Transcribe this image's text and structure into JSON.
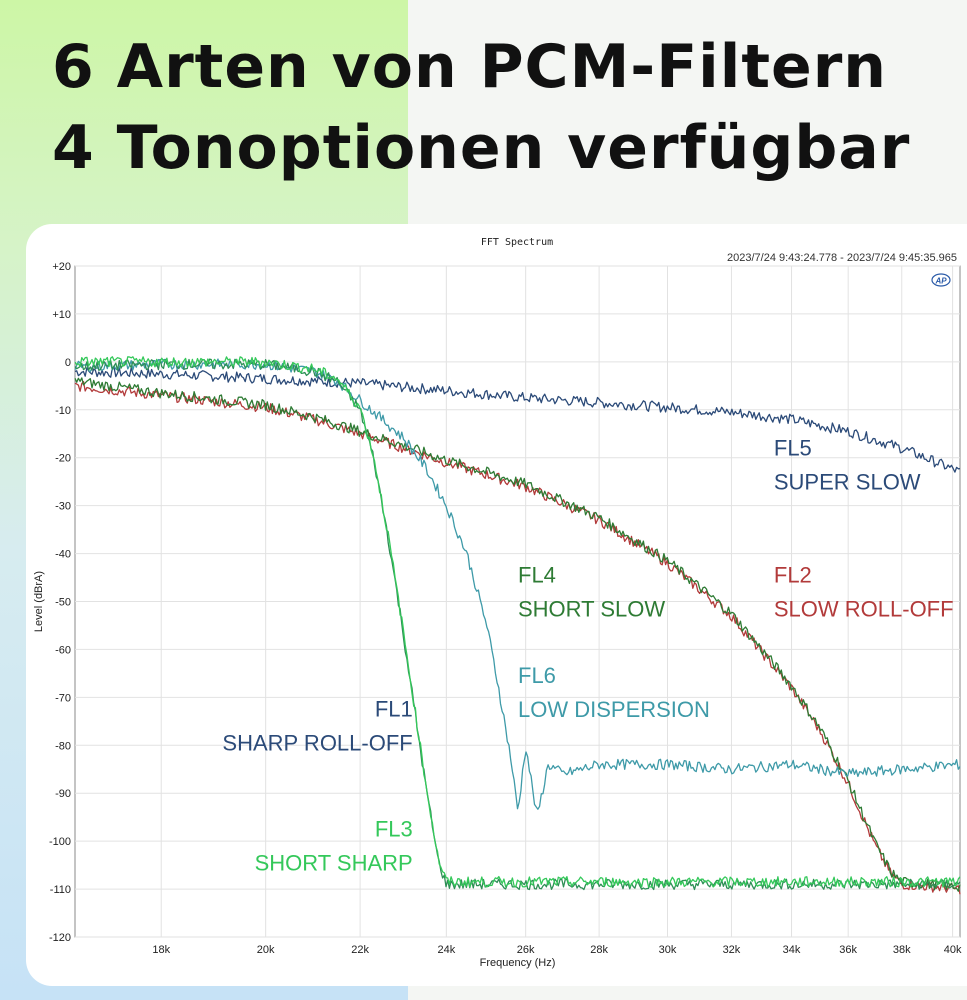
{
  "headline": {
    "line1": "6 Arten von PCM-Filtern",
    "line2": "4 Tonoptionen verfügbar"
  },
  "chart_data": {
    "type": "line",
    "title": "FFT Spectrum",
    "subtitle": "2023/7/24 9:43:24.778 -   2023/7/24 9:45:35.965",
    "logo_text": "AP",
    "xlabel": "Frequency (Hz)",
    "ylabel": "Level (dBrA)",
    "xlim": [
      16500,
      40300
    ],
    "ylim": [
      -120,
      20
    ],
    "grid": true,
    "x_scale": "log",
    "x_ticks": [
      18000,
      20000,
      22000,
      24000,
      26000,
      28000,
      30000,
      32000,
      34000,
      36000,
      38000,
      40000
    ],
    "x_tick_labels": [
      "18k",
      "20k",
      "22k",
      "24k",
      "26k",
      "28k",
      "30k",
      "32k",
      "34k",
      "36k",
      "38k",
      "40k"
    ],
    "y_ticks": [
      20,
      10,
      0,
      -10,
      -20,
      -30,
      -40,
      -50,
      -60,
      -70,
      -80,
      -90,
      -100,
      -110,
      -120
    ],
    "y_tick_labels": [
      "+20",
      "+10",
      "0",
      "-10",
      "-20",
      "-30",
      "-40",
      "-50",
      "-60",
      "-70",
      "-80",
      "-90",
      "-100",
      "-110",
      "-120"
    ],
    "series": [
      {
        "id": "fl5",
        "color": "#2b4a78",
        "x": [
          16500,
          18000,
          20000,
          22000,
          24000,
          26000,
          28000,
          30000,
          32000,
          34000,
          36000,
          38000,
          40300
        ],
        "y": [
          -2,
          -2.5,
          -3.5,
          -4.5,
          -6,
          -7.5,
          -8.5,
          -9.5,
          -10.5,
          -12,
          -14.5,
          -18,
          -23
        ]
      },
      {
        "id": "fl2",
        "color": "#b23a3a",
        "x": [
          16500,
          18000,
          20000,
          21000,
          22000,
          23000,
          24000,
          26000,
          28000,
          30000,
          32000,
          34000,
          35000,
          36000,
          37000,
          37600,
          38000,
          40300
        ],
        "y": [
          -5,
          -7,
          -9.5,
          -12,
          -15,
          -18,
          -21,
          -26,
          -33,
          -42,
          -53,
          -68,
          -77,
          -88,
          -101,
          -107,
          -109,
          -110
        ]
      },
      {
        "id": "fl4",
        "color": "#2e7b34",
        "x": [
          16500,
          18000,
          20000,
          21000,
          22000,
          23000,
          24000,
          26000,
          28000,
          30000,
          32000,
          34000,
          35000,
          36000,
          37000,
          37600,
          38000,
          40300
        ],
        "y": [
          -4,
          -6.5,
          -9,
          -11.5,
          -14.5,
          -17.5,
          -20.5,
          -25.5,
          -32.5,
          -41.5,
          -52.5,
          -67.5,
          -76.5,
          -87.5,
          -100.5,
          -106.5,
          -108.5,
          -109.5
        ]
      },
      {
        "id": "fl6",
        "color": "#3e9aa8",
        "x": [
          16500,
          18000,
          20000,
          21000,
          21500,
          22000,
          22500,
          23000,
          23500,
          24000,
          24500,
          25000,
          25300,
          25600,
          25800,
          26000,
          26300,
          26600,
          27000,
          28000,
          30000,
          32000,
          34000,
          36000,
          38000,
          40300
        ],
        "y": [
          -1,
          -0.5,
          -0.5,
          -2,
          -4,
          -8,
          -12,
          -16,
          -22,
          -30,
          -40,
          -55,
          -68,
          -82,
          -94,
          -80,
          -95,
          -84,
          -86,
          -84,
          -84,
          -85,
          -84,
          -86,
          -85,
          -84
        ]
      },
      {
        "id": "fl1",
        "color": "#2d8f55",
        "x": [
          16500,
          18000,
          20000,
          21000,
          21500,
          22000,
          22300,
          22600,
          22900,
          23200,
          23500,
          23800,
          24000,
          26000,
          28000,
          30000,
          32000,
          34000,
          36000,
          38000,
          40300
        ],
        "y": [
          -1,
          -0.5,
          -0.5,
          -2,
          -4,
          -10,
          -20,
          -35,
          -52,
          -70,
          -88,
          -104,
          -109,
          -109,
          -109,
          -109,
          -109,
          -109,
          -109,
          -109,
          -109
        ]
      },
      {
        "id": "fl3",
        "color": "#34c85a",
        "x": [
          16500,
          18000,
          20000,
          21000,
          21500,
          22000,
          22300,
          22600,
          22900,
          23200,
          23500,
          23800,
          24000,
          26000,
          28000,
          30000,
          32000,
          34000,
          36000,
          38000,
          40300
        ],
        "y": [
          0,
          0,
          0,
          -1.5,
          -3.5,
          -9.5,
          -19.5,
          -34.5,
          -51.5,
          -69.5,
          -87.5,
          -103.5,
          -108.5,
          -108.5,
          -108.5,
          -108.5,
          -108.5,
          -108.5,
          -108.5,
          -108.5,
          -108.5
        ]
      }
    ],
    "annotations": [
      {
        "id": "fl5",
        "code": "FL5",
        "name": "SUPER SLOW",
        "color": "#2b4a78",
        "anchor": "start",
        "at_x": 33400,
        "at_y": -19.5
      },
      {
        "id": "fl4",
        "code": "FL4",
        "name": "SHORT SLOW",
        "color": "#2e7b34",
        "anchor": "start",
        "at_x": 25800,
        "at_y": -46
      },
      {
        "id": "fl2",
        "code": "FL2",
        "name": "SLOW ROLL-OFF",
        "color": "#b23a3a",
        "anchor": "start",
        "at_x": 33400,
        "at_y": -46
      },
      {
        "id": "fl6",
        "code": "FL6",
        "name": "LOW DISPERSION",
        "color": "#3e9aa8",
        "anchor": "start",
        "at_x": 25800,
        "at_y": -67
      },
      {
        "id": "fl1",
        "code": "FL1",
        "name": "SHARP ROLL-OFF",
        "color": "#2b4a78",
        "anchor": "end",
        "at_x": 23200,
        "at_y": -74
      },
      {
        "id": "fl3",
        "code": "FL3",
        "name": "SHORT SHARP",
        "color": "#34c85a",
        "anchor": "end",
        "at_x": 23200,
        "at_y": -99
      }
    ]
  }
}
